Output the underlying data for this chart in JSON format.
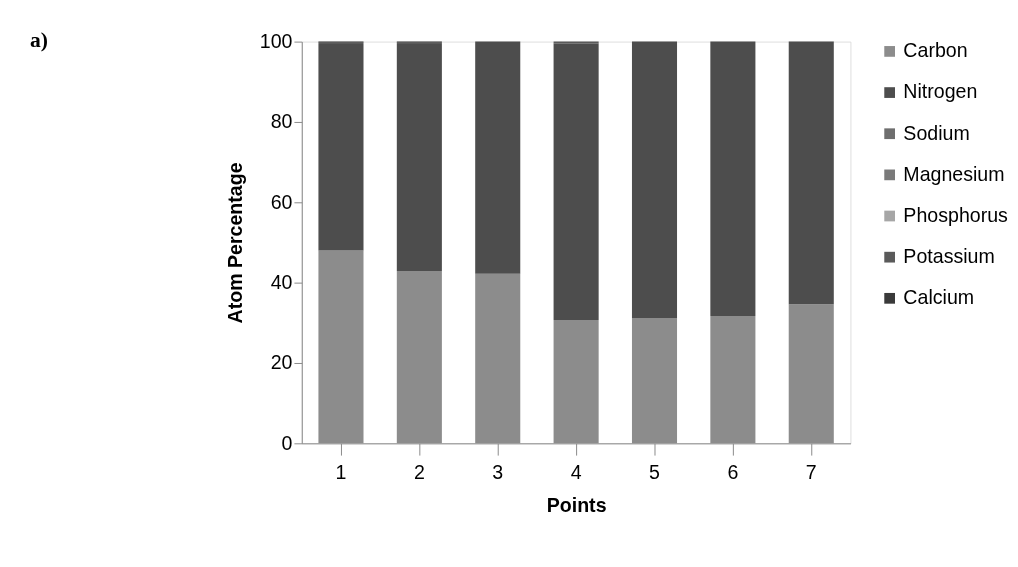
{
  "chart_data": {
    "type": "bar",
    "stacked": true,
    "xlabel": "Points",
    "ylabel": "Atom Percentage",
    "annotations": [
      "a)"
    ],
    "categories": [
      "1",
      "2",
      "3",
      "4",
      "5",
      "6",
      "7"
    ],
    "ylim": [
      0,
      100
    ],
    "yticks": [
      0,
      20,
      40,
      60,
      80,
      100
    ],
    "grid": false,
    "legend": "right",
    "series": [
      {
        "name": "Carbon",
        "color": "#8c8c8c",
        "values": [
          48.0,
          42.9,
          42.2,
          30.7,
          31.2,
          31.7,
          34.6
        ]
      },
      {
        "name": "Nitrogen",
        "color": "#4d4d4d",
        "values": [
          51.4,
          56.5,
          57.8,
          68.8,
          68.8,
          68.3,
          65.4
        ]
      },
      {
        "name": "Sodium",
        "color": "#6e6e6e",
        "values": [
          0,
          0,
          0,
          0,
          0,
          0,
          0
        ]
      },
      {
        "name": "Magnesium",
        "color": "#7a7a7a",
        "values": [
          0,
          0,
          0,
          0,
          0,
          0,
          0
        ]
      },
      {
        "name": "Phosphorus",
        "color": "#a6a6a6",
        "values": [
          0,
          0,
          0,
          0,
          0,
          0,
          0
        ]
      },
      {
        "name": "Potassium",
        "color": "#5a5a5a",
        "values": [
          0.3,
          0.3,
          0,
          0.5,
          0,
          0,
          0
        ]
      },
      {
        "name": "Calcium",
        "color": "#3a3a3a",
        "values": [
          0.3,
          0.3,
          0,
          0,
          0,
          0,
          0
        ]
      }
    ]
  }
}
